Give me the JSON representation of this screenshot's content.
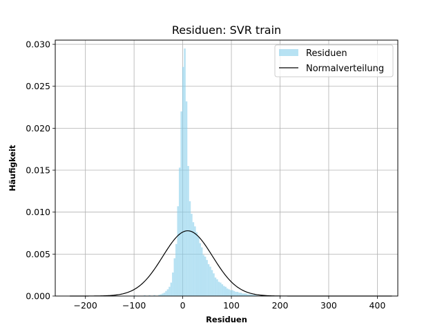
{
  "chart_data": {
    "type": "bar",
    "title": "Residuen: SVR train",
    "xlabel": "Residuen",
    "ylabel": "Häufigkeit",
    "xlim": [
      -262,
      442
    ],
    "ylim": [
      0,
      0.0305
    ],
    "xticks": [
      -200,
      -100,
      0,
      100,
      200,
      300,
      400
    ],
    "xtick_labels": [
      "−200",
      "−100",
      "0",
      "100",
      "200",
      "300",
      "400"
    ],
    "yticks": [
      0.0,
      0.005,
      0.01,
      0.015,
      0.02,
      0.025,
      0.03
    ],
    "ytick_labels": [
      "0.000",
      "0.005",
      "0.010",
      "0.015",
      "0.020",
      "0.025",
      "0.030"
    ],
    "grid": true,
    "legend_position": "top-right",
    "series": [
      {
        "name": "Residuen",
        "kind": "histogram",
        "color": "#87ceeb",
        "bin_width": 3.5,
        "bins": [
          [
            -140,
            5e-05
          ],
          [
            -100,
            8e-05
          ],
          [
            -80,
            0.0001
          ],
          [
            -70,
            0.0001
          ],
          [
            -60,
            0.00012
          ],
          [
            -50,
            0.00015
          ],
          [
            -46.5,
            0.0002
          ],
          [
            -43,
            0.0003
          ],
          [
            -39.5,
            0.0004
          ],
          [
            -36,
            0.0006
          ],
          [
            -32.5,
            0.0008
          ],
          [
            -29,
            0.0011
          ],
          [
            -25.5,
            0.0016
          ],
          [
            -22,
            0.0028
          ],
          [
            -18.5,
            0.0045
          ],
          [
            -15,
            0.0062
          ],
          [
            -11.5,
            0.0107
          ],
          [
            -8,
            0.0153
          ],
          [
            -4.5,
            0.022
          ],
          [
            -1,
            0.0273
          ],
          [
            2.5,
            0.0295
          ],
          [
            6,
            0.0232
          ],
          [
            9.5,
            0.0155
          ],
          [
            13,
            0.0113
          ],
          [
            16.5,
            0.0098
          ],
          [
            20,
            0.0088
          ],
          [
            23.5,
            0.0083
          ],
          [
            27,
            0.0076
          ],
          [
            30.5,
            0.0071
          ],
          [
            34,
            0.0063
          ],
          [
            37.5,
            0.0058
          ],
          [
            41,
            0.0049
          ],
          [
            44.5,
            0.0047
          ],
          [
            48,
            0.0043
          ],
          [
            51.5,
            0.0038
          ],
          [
            55,
            0.0035
          ],
          [
            58.5,
            0.0031
          ],
          [
            62,
            0.0027
          ],
          [
            65.5,
            0.0022
          ],
          [
            69,
            0.002
          ],
          [
            72.5,
            0.0017
          ],
          [
            76,
            0.0016
          ],
          [
            79.5,
            0.0014
          ],
          [
            83,
            0.0012
          ],
          [
            86.5,
            0.0011
          ],
          [
            90,
            0.0009
          ],
          [
            93.5,
            0.0008
          ],
          [
            97,
            0.0007
          ],
          [
            100.5,
            0.0007
          ],
          [
            104,
            0.0006
          ],
          [
            107.5,
            0.0005
          ],
          [
            111,
            0.0005
          ],
          [
            114.5,
            0.0004
          ],
          [
            118,
            0.0004
          ],
          [
            121.5,
            0.0003
          ],
          [
            125,
            0.0003
          ],
          [
            128.5,
            0.0003
          ],
          [
            132,
            0.0002
          ],
          [
            135.5,
            0.0002
          ],
          [
            139,
            0.0002
          ],
          [
            142.5,
            0.00015
          ],
          [
            146,
            0.00015
          ],
          [
            150,
            0.0001
          ],
          [
            160,
            0.0001
          ],
          [
            170,
            8e-05
          ],
          [
            180,
            6e-05
          ],
          [
            200,
            5e-05
          ],
          [
            220,
            4e-05
          ],
          [
            250,
            3e-05
          ],
          [
            300,
            2e-05
          ],
          [
            350,
            2e-05
          ],
          [
            420,
            2e-05
          ]
        ]
      },
      {
        "name": "Normalverteilung",
        "kind": "line",
        "color": "#000000",
        "mean": 10.2,
        "std": 51.3,
        "x_range": [
          -232,
          430
        ]
      }
    ]
  }
}
